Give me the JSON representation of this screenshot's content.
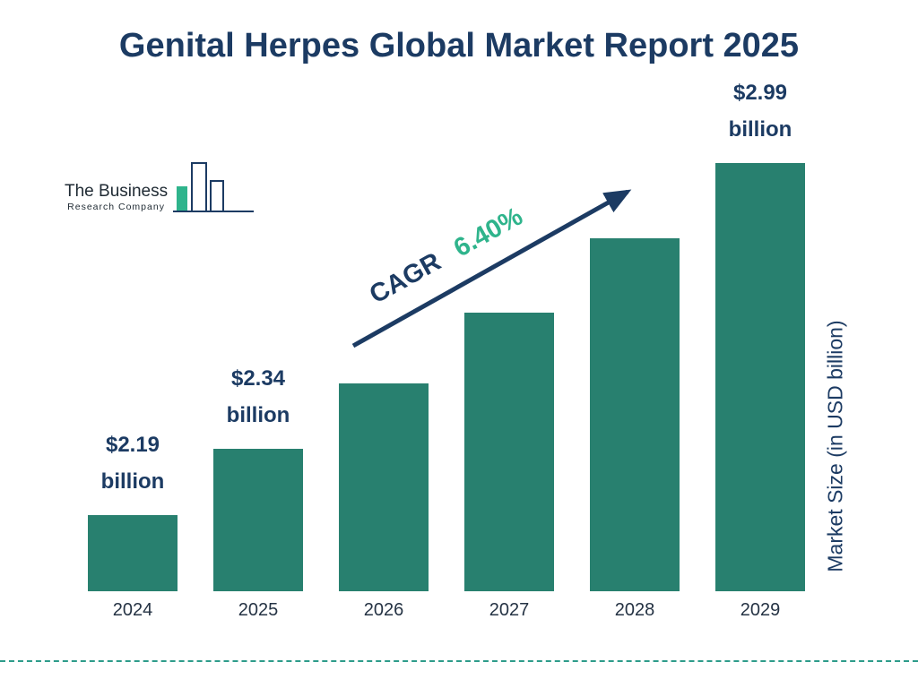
{
  "page": {
    "title": "Genital Herpes Global Market Report 2025"
  },
  "logo": {
    "line1": "The Business",
    "line2": "Research Company"
  },
  "chart_data": {
    "type": "bar",
    "title": "Genital Herpes Global Market Report 2025",
    "categories": [
      "2024",
      "2025",
      "2026",
      "2027",
      "2028",
      "2029"
    ],
    "values": [
      2.19,
      2.34,
      2.49,
      2.65,
      2.82,
      2.99
    ],
    "value_labels": [
      [
        "$2.19",
        "billion"
      ],
      [
        "$2.34",
        "billion"
      ],
      null,
      null,
      null,
      [
        "$2.99",
        "billion"
      ]
    ],
    "xlabel": "",
    "ylabel": "Market Size (in USD billion)",
    "annotation": {
      "label": "CAGR",
      "value": "6.40%"
    },
    "grid": false,
    "legend": "none",
    "colors": {
      "bar": "#28806f",
      "navy": "#1c3b63",
      "green": "#2fb48c",
      "dash_line": "#2e9c8a"
    }
  }
}
